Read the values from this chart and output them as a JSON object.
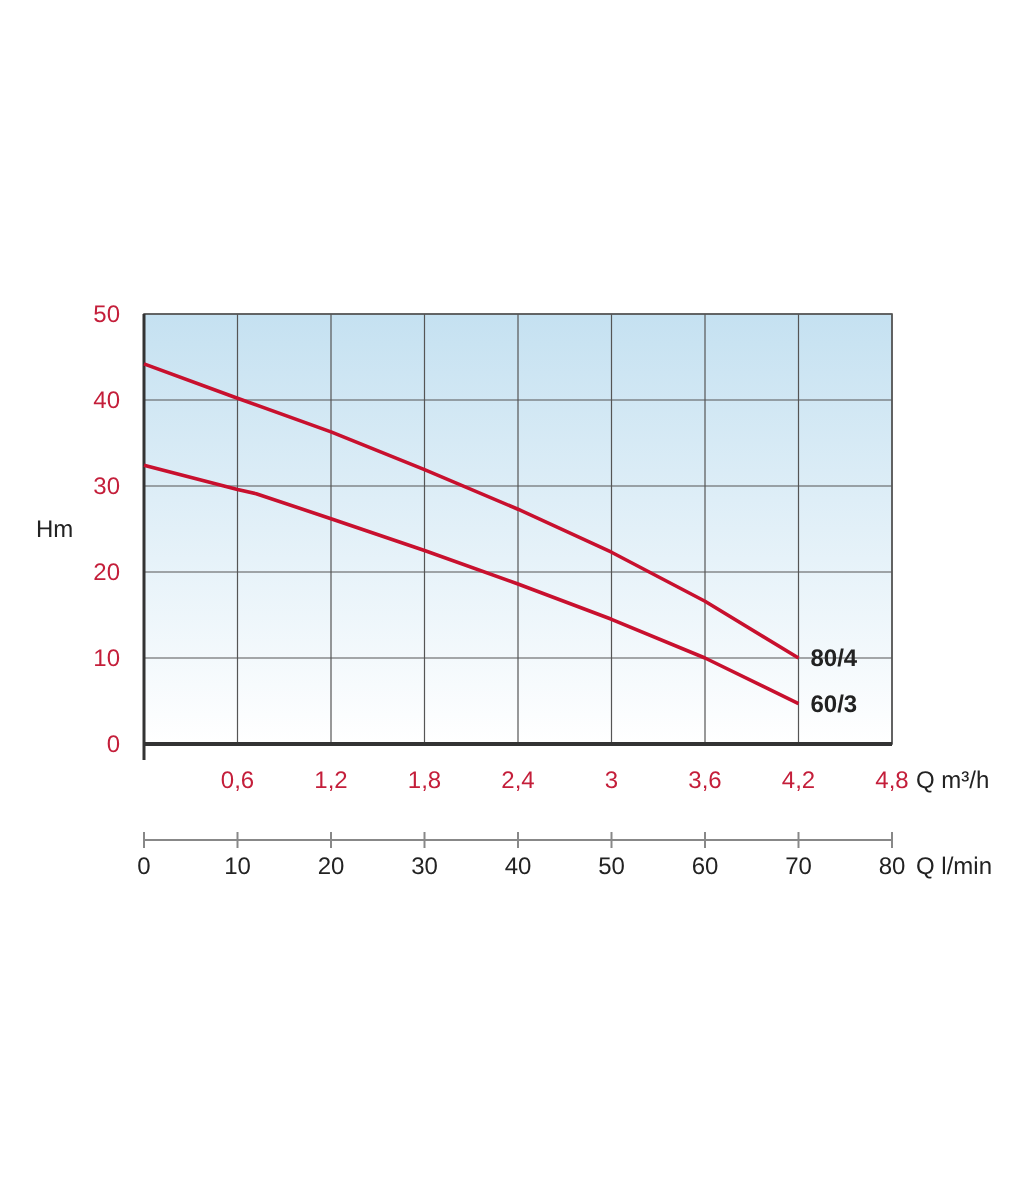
{
  "chart_data": {
    "type": "line",
    "xlabel": "Q m³/h",
    "ylabel": "Hm",
    "x2label": "Q l/min",
    "xlim": [
      0,
      4.8
    ],
    "xticks": [
      {
        "value": 0.6,
        "label": "0,6"
      },
      {
        "value": 1.2,
        "label": "1,2"
      },
      {
        "value": 1.8,
        "label": "1,8"
      },
      {
        "value": 2.4,
        "label": "2,4"
      },
      3,
      {
        "value": 3.6,
        "label": "3,6"
      },
      {
        "value": 4.2,
        "label": "4,2"
      },
      {
        "value": 4.8,
        "label": "4,8"
      }
    ],
    "ylim": [
      0,
      50
    ],
    "yticks": [
      0,
      10,
      20,
      30,
      40,
      50
    ],
    "x2lim": [
      0,
      80
    ],
    "x2ticks": [
      0,
      10,
      20,
      30,
      40,
      50,
      60,
      70,
      80
    ],
    "grid": true,
    "marker": "none",
    "line_style": "solid",
    "series": [
      {
        "name": "80/4",
        "color": "#c8102e",
        "x": [
          0,
          0.6,
          1.2,
          1.8,
          2.4,
          3.0,
          3.6,
          4.2
        ],
        "values": [
          44.2,
          40.2,
          36.3,
          31.9,
          27.3,
          22.3,
          16.6,
          10
        ]
      },
      {
        "name": "60/3",
        "color": "#c8102e",
        "x": [
          0,
          0.6,
          0.72,
          1.2,
          1.8,
          2.4,
          3.0,
          3.6,
          4.2
        ],
        "values": [
          32.4,
          29.6,
          29.1,
          26.2,
          22.5,
          18.6,
          14.5,
          10,
          4.7
        ]
      }
    ]
  }
}
